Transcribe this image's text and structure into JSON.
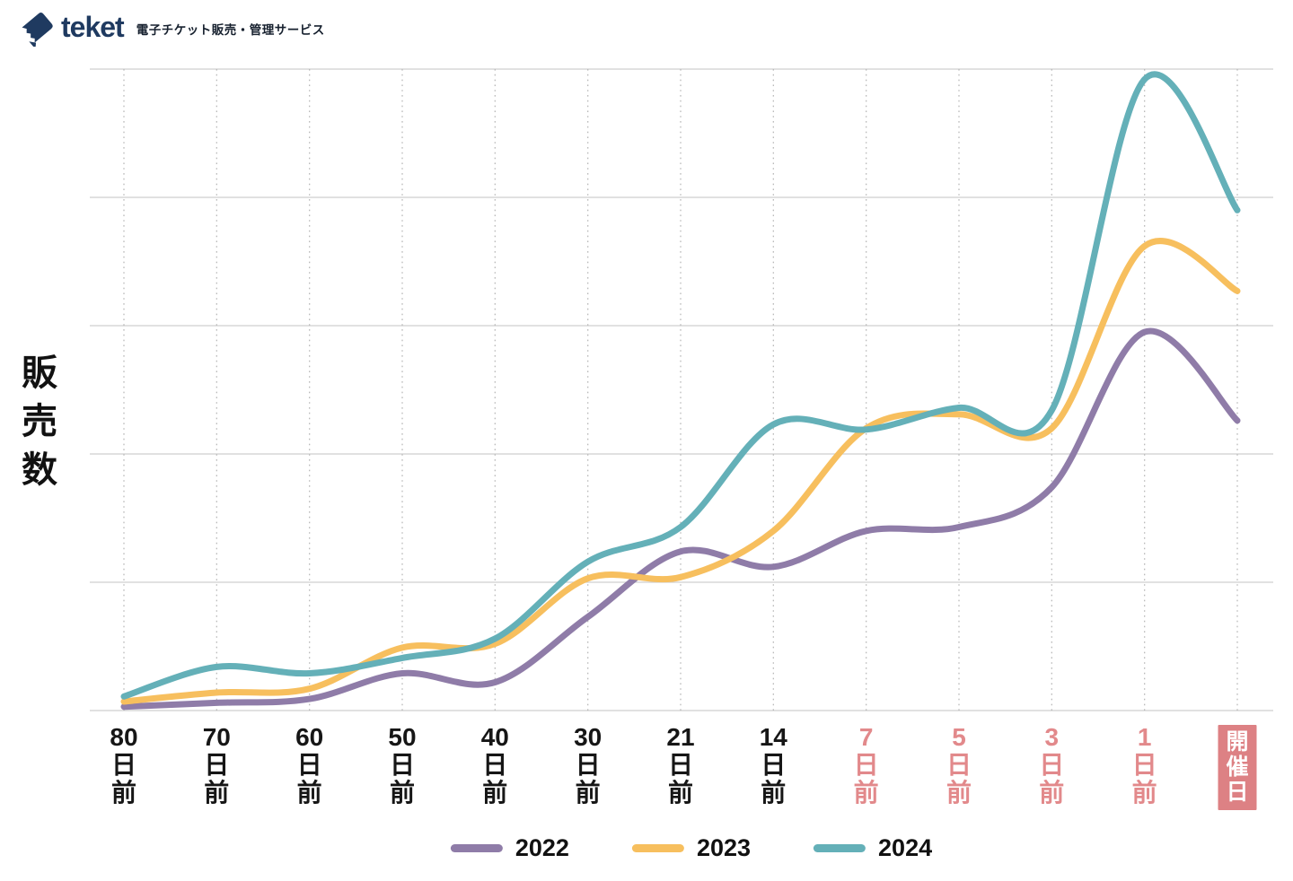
{
  "header": {
    "logo_text": "teket",
    "tagline": "電子チケット販売・管理サービス"
  },
  "chart_data": {
    "type": "line",
    "title": "",
    "xlabel": "",
    "ylabel": "販売数",
    "categories": [
      "80日前",
      "70日前",
      "60日前",
      "50日前",
      "40日前",
      "30日前",
      "21日前",
      "14日前",
      "7日前",
      "5日前",
      "3日前",
      "1日前",
      "開催日"
    ],
    "highlighted_categories": [
      "7日前",
      "5日前",
      "3日前",
      "1日前",
      "開催日"
    ],
    "series": [
      {
        "name": "2022",
        "color": "#8f7ca8",
        "values": [
          0.03,
          0.06,
          0.09,
          0.29,
          0.22,
          0.73,
          1.24,
          1.12,
          1.4,
          1.43,
          1.74,
          2.95,
          2.26
        ]
      },
      {
        "name": "2023",
        "color": "#f7bf5e",
        "values": [
          0.07,
          0.14,
          0.17,
          0.49,
          0.52,
          1.03,
          1.04,
          1.4,
          2.2,
          2.31,
          2.2,
          3.62,
          3.27
        ]
      },
      {
        "name": "2024",
        "color": "#64b0b8",
        "values": [
          0.11,
          0.34,
          0.29,
          0.41,
          0.56,
          1.16,
          1.43,
          2.23,
          2.19,
          2.36,
          2.34,
          4.92,
          3.9
        ]
      }
    ],
    "ylim": [
      0,
      5.4
    ],
    "y_gridline_values": [
      1,
      2,
      3,
      4,
      5
    ],
    "y_numeric_labels_shown": false,
    "grid": {
      "horizontal": "solid",
      "vertical": "dotted"
    },
    "legend_position": "bottom",
    "curve": "smooth"
  },
  "xaxis": {
    "ticks": [
      {
        "text": "80\n日\n前"
      },
      {
        "text": "70\n日\n前"
      },
      {
        "text": "60\n日\n前"
      },
      {
        "text": "50\n日\n前"
      },
      {
        "text": "40\n日\n前"
      },
      {
        "text": "30\n日\n前"
      },
      {
        "text": "21\n日\n前"
      },
      {
        "text": "14\n日\n前"
      },
      {
        "text": "7\n日\n前"
      },
      {
        "text": "5\n日\n前"
      },
      {
        "text": "3\n日\n前"
      },
      {
        "text": "1\n日\n前"
      },
      {
        "text": "開\n催\n日"
      }
    ]
  },
  "colors": {
    "accent_red": "#e2898b",
    "badge_bg": "#dd8184",
    "badge_text": "#ffffff",
    "grid_solid": "#cfcfcf",
    "grid_dotted": "#b9b9b9",
    "logo_navy": "#1f3a60"
  }
}
